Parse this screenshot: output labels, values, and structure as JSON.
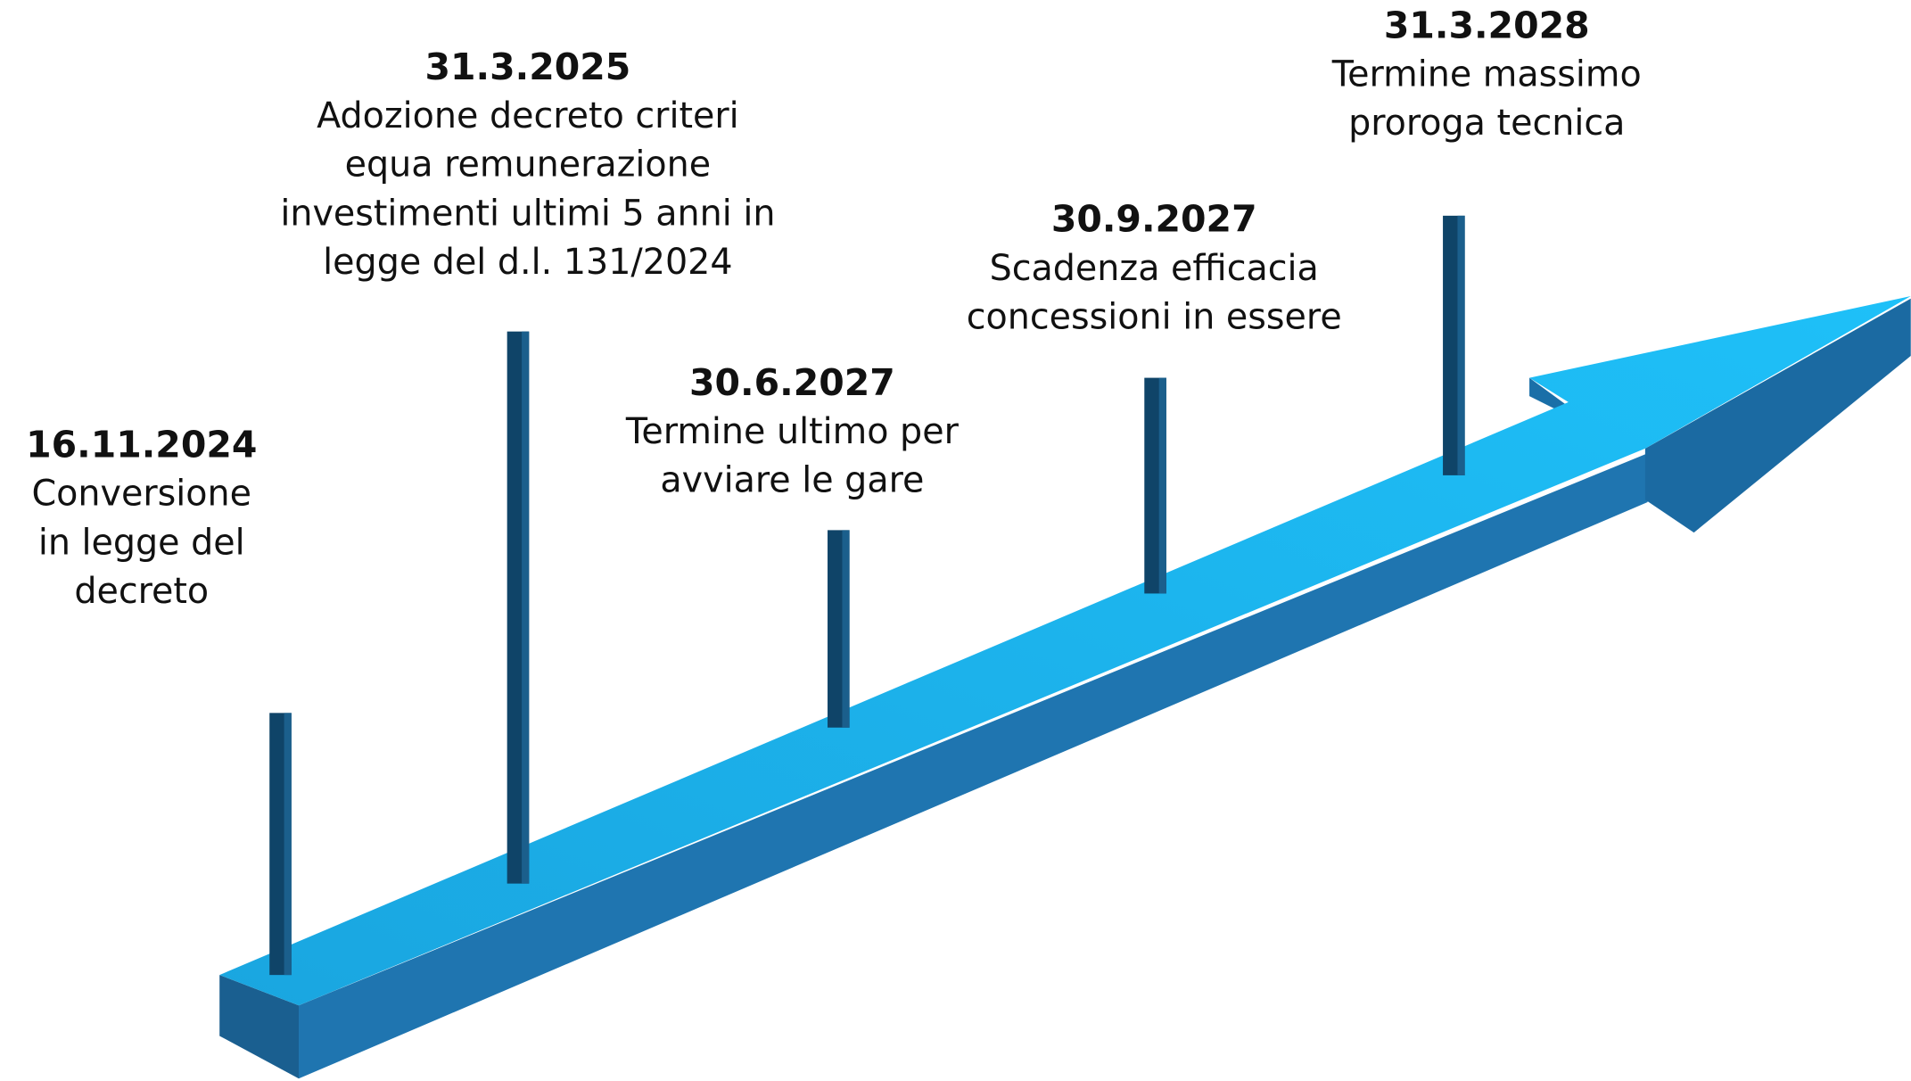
{
  "events": [
    {
      "date": "16.11.2024",
      "lines": [
        "Conversione",
        "in legge del",
        "decreto"
      ]
    },
    {
      "date": "31.3.2025",
      "lines": [
        "Adozione decreto criteri",
        "equa remunerazione",
        "investimenti ultimi 5 anni in",
        "legge del d.l. 131/2024"
      ]
    },
    {
      "date": "30.6.2027",
      "lines": [
        "Termine ultimo per",
        "avviare le gare"
      ]
    },
    {
      "date": "30.9.2027",
      "lines": [
        "Scadenza efficacia",
        "concessioni in essere"
      ]
    },
    {
      "date": "31.3.2028",
      "lines": [
        "Termine massimo",
        "proroga tecnica"
      ]
    }
  ]
}
